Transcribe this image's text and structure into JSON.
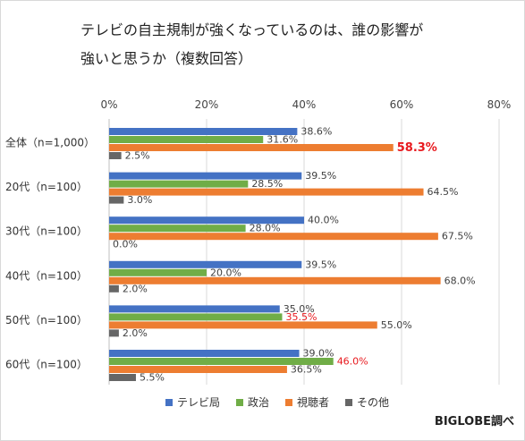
{
  "title_line1": "テレビの自主規制が強くなっているのは、誰の影響が",
  "title_line2": "強いと思うか（複数回答）",
  "source": "BIGLOBE調べ",
  "chart_data": {
    "type": "bar",
    "orientation": "horizontal",
    "categories": [
      "全体（n=1,000）",
      "20代（n=100）",
      "30代（n=100）",
      "40代（n=100）",
      "50代（n=100）",
      "60代（n=100）"
    ],
    "xlim": [
      0,
      80
    ],
    "xticks": [
      "0%",
      "20%",
      "40%",
      "60%",
      "80%"
    ],
    "grid": true,
    "legend_position": "bottom",
    "series": [
      {
        "name": "テレビ局",
        "color": "#4472c4",
        "values": [
          38.6,
          39.5,
          40.0,
          39.5,
          35.0,
          39.0
        ],
        "labels": [
          "38.6%",
          "39.5%",
          "40.0%",
          "39.5%",
          "35.0%",
          "39.0%"
        ]
      },
      {
        "name": "政治",
        "color": "#70ad47",
        "values": [
          31.6,
          28.5,
          28.0,
          20.0,
          35.5,
          46.0
        ],
        "labels": [
          "31.6%",
          "28.5%",
          "28.0%",
          "20.0%",
          "35.5%",
          "46.0%"
        ]
      },
      {
        "name": "視聴者",
        "color": "#ed7d31",
        "values": [
          58.3,
          64.5,
          67.5,
          68.0,
          55.0,
          36.5
        ],
        "labels": [
          "58.3%",
          "64.5%",
          "67.5%",
          "68.0%",
          "55.0%",
          "36.5%"
        ]
      },
      {
        "name": "その他",
        "color": "#666666",
        "values": [
          2.5,
          3.0,
          0.0,
          2.0,
          2.0,
          5.5
        ],
        "labels": [
          "2.5%",
          "3.0%",
          "0.0%",
          "2.0%",
          "2.0%",
          "5.5%"
        ]
      }
    ],
    "highlight_color": "#e8191e",
    "highlighted_labels": [
      {
        "series": 2,
        "index": 0,
        "bold": true
      },
      {
        "series": 1,
        "index": 4,
        "bold": false
      },
      {
        "series": 1,
        "index": 5,
        "bold": false
      }
    ]
  }
}
